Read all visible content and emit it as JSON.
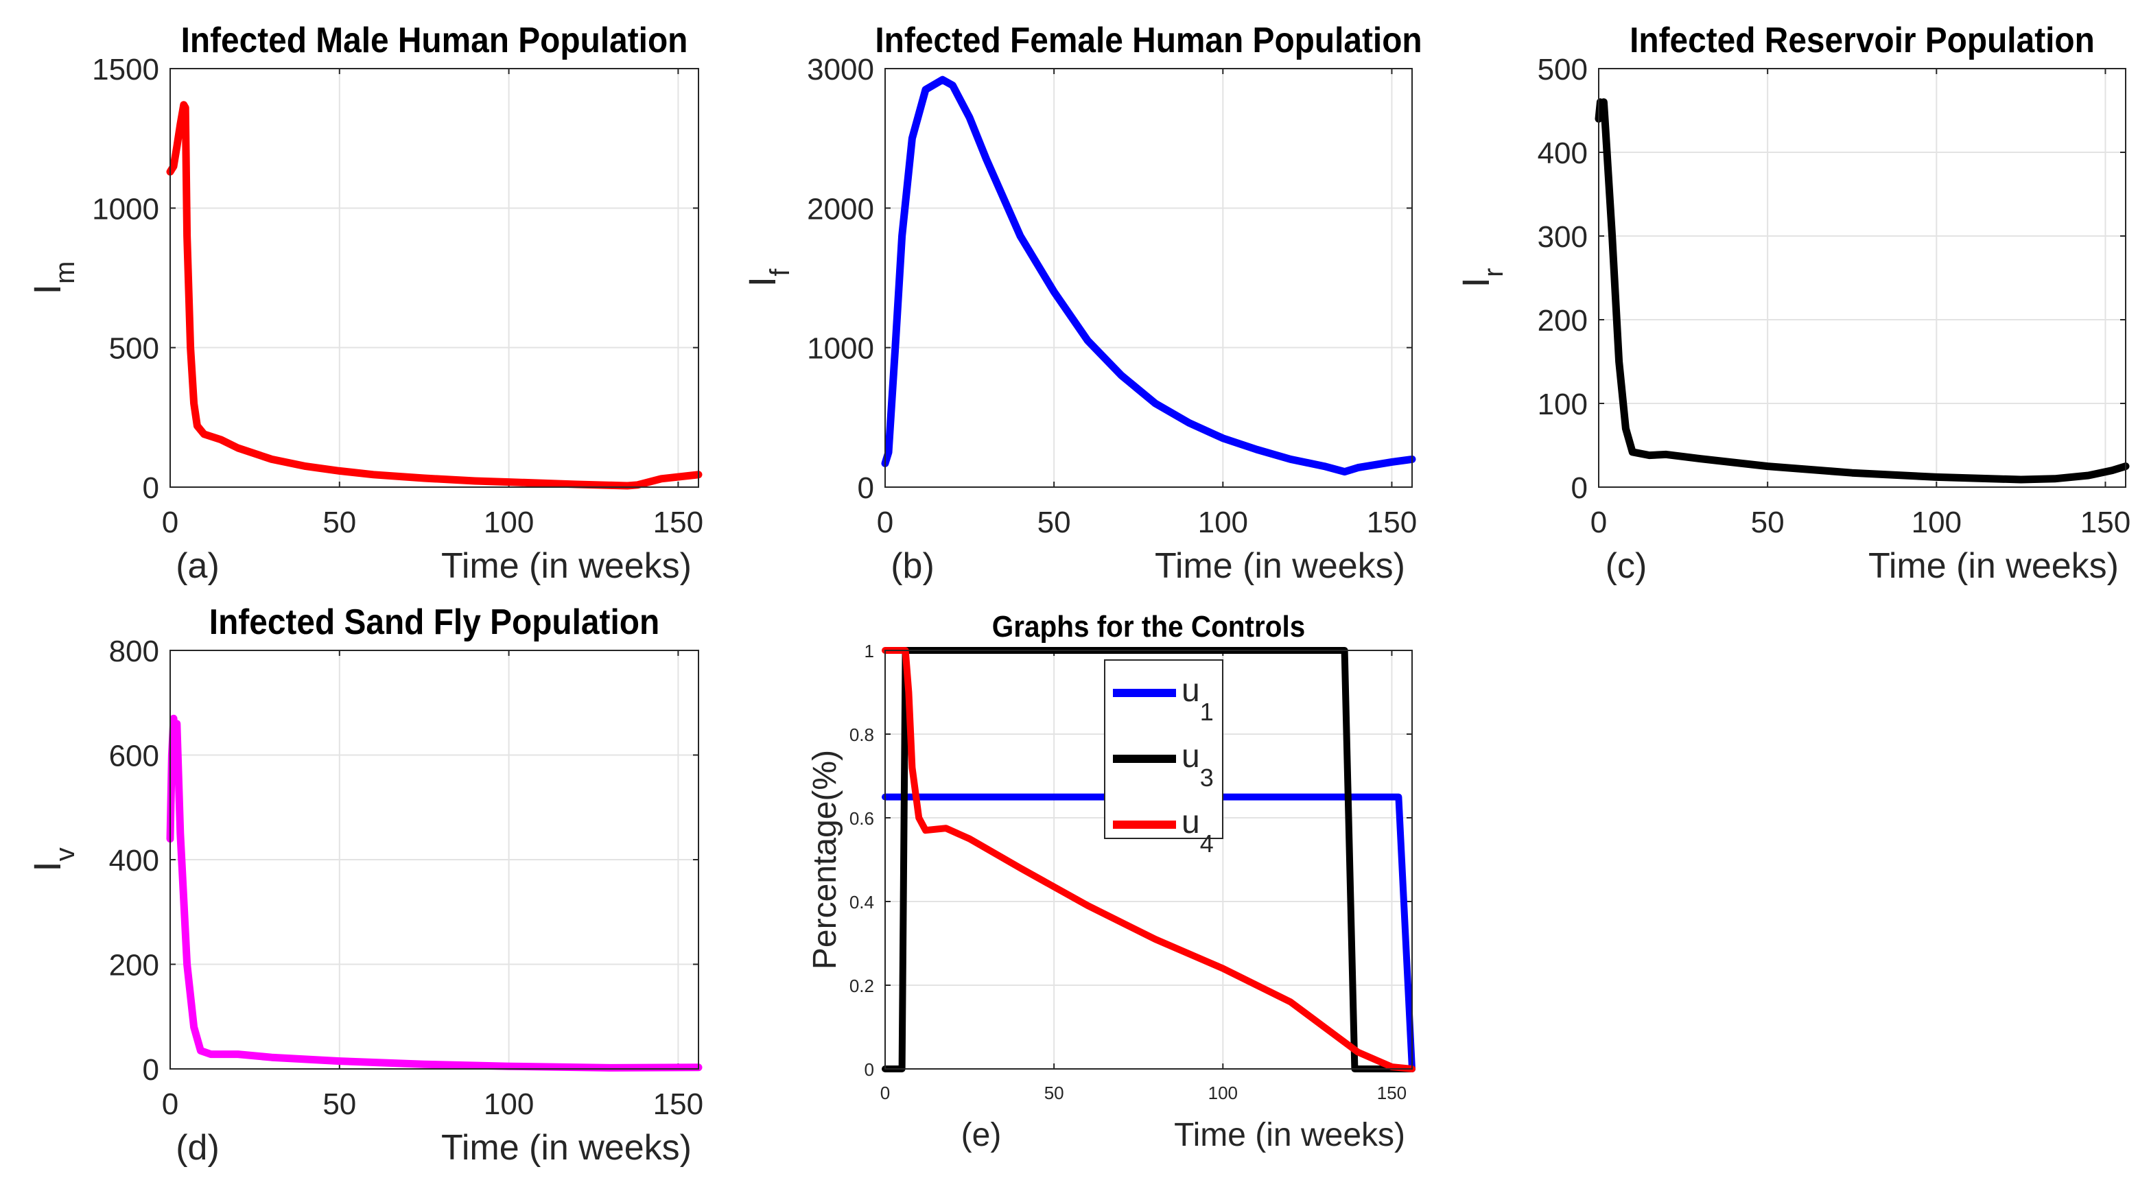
{
  "chart_data": [
    {
      "type": "line",
      "title": "Infected Male Human Population",
      "panel_label": "(a)",
      "xlabel": "Time (in weeks)",
      "ylabel": "I",
      "ylabel_sub": "m",
      "xlim": [
        0,
        156
      ],
      "ylim": [
        0,
        1500
      ],
      "xticks": [
        0,
        50,
        100,
        150
      ],
      "yticks": [
        0,
        500,
        1000,
        1500
      ],
      "grid": true,
      "series": [
        {
          "color": "#ff0000",
          "x": [
            0,
            1,
            2,
            3,
            4,
            4.5,
            5,
            6,
            7,
            8,
            10,
            15,
            20,
            30,
            40,
            50,
            60,
            75,
            90,
            100,
            120,
            135,
            138,
            145,
            156
          ],
          "y": [
            1130,
            1150,
            1220,
            1300,
            1370,
            1360,
            900,
            500,
            300,
            220,
            190,
            170,
            140,
            100,
            75,
            58,
            45,
            32,
            22,
            18,
            10,
            5,
            8,
            30,
            45
          ]
        }
      ]
    },
    {
      "type": "line",
      "title": "Infected Female Human Population",
      "panel_label": "(b)",
      "xlabel": "Time (in weeks)",
      "ylabel": "I",
      "ylabel_sub": "f",
      "xlim": [
        0,
        156
      ],
      "ylim": [
        0,
        3000
      ],
      "xticks": [
        0,
        50,
        100,
        150
      ],
      "yticks": [
        0,
        1000,
        2000,
        3000
      ],
      "grid": true,
      "series": [
        {
          "color": "#0000ff",
          "x": [
            0,
            1,
            3,
            5,
            8,
            12,
            17,
            20,
            25,
            30,
            40,
            50,
            60,
            70,
            80,
            90,
            100,
            110,
            120,
            130,
            136,
            140,
            150,
            156
          ],
          "y": [
            170,
            250,
            1000,
            1800,
            2500,
            2850,
            2920,
            2880,
            2650,
            2350,
            1800,
            1400,
            1050,
            800,
            600,
            460,
            350,
            270,
            200,
            150,
            110,
            140,
            180,
            200
          ]
        }
      ]
    },
    {
      "type": "line",
      "title": "Infected Reservoir Population",
      "panel_label": "(c)",
      "xlabel": "Time (in weeks)",
      "ylabel": "I",
      "ylabel_sub": "r",
      "xlim": [
        0,
        156
      ],
      "ylim": [
        0,
        500
      ],
      "xticks": [
        0,
        50,
        100,
        150
      ],
      "yticks": [
        0,
        100,
        200,
        300,
        400,
        500
      ],
      "grid": true,
      "series": [
        {
          "color": "#000000",
          "x": [
            0,
            0.5,
            1,
            1.5,
            2,
            4,
            6,
            8,
            10,
            15,
            20,
            30,
            50,
            75,
            100,
            125,
            135,
            145,
            152,
            156
          ],
          "y": [
            440,
            460,
            445,
            460,
            430,
            300,
            150,
            70,
            42,
            38,
            39,
            34,
            25,
            17,
            12,
            9,
            10,
            14,
            20,
            25
          ]
        }
      ]
    },
    {
      "type": "line",
      "title": "Infected Sand Fly Population",
      "panel_label": "(d)",
      "xlabel": "Time (in weeks)",
      "ylabel": "I",
      "ylabel_sub": "v",
      "xlim": [
        0,
        156
      ],
      "ylim": [
        0,
        800
      ],
      "xticks": [
        0,
        50,
        100,
        150
      ],
      "yticks": [
        0,
        200,
        400,
        600,
        800
      ],
      "grid": true,
      "series": [
        {
          "color": "#ff00ff",
          "x": [
            0,
            0.5,
            1,
            1.5,
            2,
            3,
            5,
            7,
            9,
            12,
            20,
            30,
            50,
            75,
            100,
            130,
            156
          ],
          "y": [
            440,
            600,
            670,
            630,
            660,
            450,
            200,
            80,
            35,
            28,
            28,
            22,
            15,
            9,
            5,
            2,
            3
          ]
        }
      ]
    },
    {
      "type": "line",
      "title": "Graphs for the Controls",
      "panel_label": "(e)",
      "xlabel": "Time (in weeks)",
      "ylabel": "Percentage(%)",
      "ylabel_sub": "",
      "xlim": [
        0,
        156
      ],
      "ylim": [
        0,
        1
      ],
      "xticks": [
        0,
        50,
        100,
        150
      ],
      "yticks": [
        0,
        0.2,
        0.4,
        0.6,
        0.8,
        1
      ],
      "grid": true,
      "legend": "top-center",
      "series": [
        {
          "name": "u",
          "sub": "1",
          "color": "#0000ff",
          "x": [
            0,
            152,
            156
          ],
          "y": [
            0.65,
            0.65,
            0
          ]
        },
        {
          "name": "u",
          "sub": "3",
          "color": "#000000",
          "x": [
            0,
            5,
            6,
            136,
            139,
            156
          ],
          "y": [
            0,
            0,
            1,
            1,
            0,
            0
          ]
        },
        {
          "name": "u",
          "sub": "4",
          "color": "#ff0000",
          "x": [
            0,
            6,
            7,
            8,
            10,
            12,
            18,
            25,
            40,
            60,
            80,
            100,
            120,
            130,
            140,
            150,
            156
          ],
          "y": [
            1,
            1,
            0.9,
            0.72,
            0.6,
            0.57,
            0.575,
            0.55,
            0.48,
            0.39,
            0.31,
            0.24,
            0.16,
            0.1,
            0.04,
            0.005,
            0
          ]
        }
      ]
    }
  ]
}
